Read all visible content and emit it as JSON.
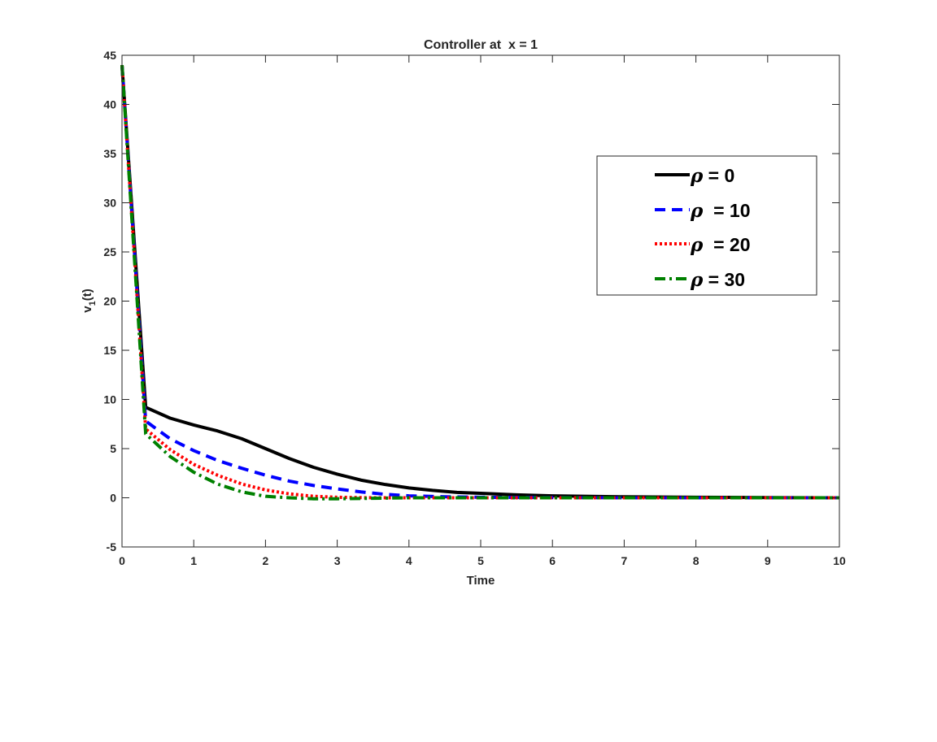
{
  "chart_data": {
    "type": "line",
    "title": "Controller at  x = 1",
    "xlabel": "Time",
    "ylabel": {
      "base": "v",
      "sub": "1",
      "suffix": "(t)"
    },
    "xlim": [
      0,
      10
    ],
    "ylim": [
      -5,
      45
    ],
    "xticks": [
      0,
      1,
      2,
      3,
      4,
      5,
      6,
      7,
      8,
      9,
      10
    ],
    "yticks": [
      -5,
      0,
      5,
      10,
      15,
      20,
      25,
      30,
      35,
      40,
      45
    ],
    "grid": false,
    "legend_position": "upper-right",
    "series": [
      {
        "name": "ρ = 0",
        "legend_symbol": "ρ",
        "legend_rest": " = 0",
        "color": "#000000",
        "style": "solid",
        "x": [
          0,
          0.33,
          0.67,
          1.0,
          1.33,
          1.67,
          2.0,
          2.33,
          2.67,
          3.0,
          3.33,
          3.67,
          4.0,
          4.33,
          4.67,
          5.0,
          5.5,
          6.0,
          7.0,
          8.0,
          9.0,
          10.0
        ],
        "y": [
          44,
          9.2,
          8.1,
          7.4,
          6.8,
          6.0,
          5.0,
          4.0,
          3.1,
          2.4,
          1.8,
          1.35,
          1.0,
          0.75,
          0.55,
          0.45,
          0.3,
          0.2,
          0.1,
          0.05,
          0.02,
          0.0
        ]
      },
      {
        "name": "ρ  = 10",
        "legend_symbol": "ρ",
        "legend_rest": "  = 10",
        "color": "#0000ff",
        "style": "dashed",
        "x": [
          0,
          0.33,
          0.67,
          1.0,
          1.33,
          1.67,
          2.0,
          2.33,
          2.67,
          3.0,
          3.33,
          3.67,
          4.0,
          4.5,
          5.0,
          6.0,
          7.0,
          8.0,
          9.0,
          10.0
        ],
        "y": [
          44,
          7.8,
          6.0,
          4.8,
          3.8,
          3.0,
          2.3,
          1.7,
          1.25,
          0.9,
          0.6,
          0.35,
          0.2,
          0.1,
          0.05,
          0.02,
          0.0,
          0.0,
          0.0,
          0.0
        ]
      },
      {
        "name": "ρ  = 20",
        "legend_symbol": "ρ",
        "legend_rest": "  = 20",
        "color": "#ff0000",
        "style": "dotted",
        "x": [
          0,
          0.33,
          0.67,
          1.0,
          1.33,
          1.67,
          2.0,
          2.33,
          2.67,
          3.0,
          3.5,
          4.0,
          5.0,
          6.0,
          7.0,
          8.0,
          9.0,
          10.0
        ],
        "y": [
          44,
          7.0,
          4.9,
          3.4,
          2.3,
          1.4,
          0.8,
          0.4,
          0.15,
          0.05,
          0.0,
          0.0,
          0.0,
          0.0,
          0.0,
          0.0,
          0.0,
          0.0
        ]
      },
      {
        "name": "ρ = 30",
        "legend_symbol": "ρ",
        "legend_rest": " = 30",
        "color": "#008000",
        "style": "dashdot",
        "x": [
          0,
          0.33,
          0.67,
          1.0,
          1.33,
          1.67,
          2.0,
          2.33,
          2.67,
          3.0,
          3.5,
          4.0,
          5.0,
          6.0,
          7.0,
          8.0,
          9.0,
          10.0
        ],
        "y": [
          44,
          6.5,
          4.2,
          2.6,
          1.4,
          0.6,
          0.15,
          0.0,
          -0.1,
          -0.1,
          -0.05,
          0.0,
          0.0,
          0.0,
          0.0,
          0.0,
          0.0,
          0.0
        ]
      }
    ]
  }
}
